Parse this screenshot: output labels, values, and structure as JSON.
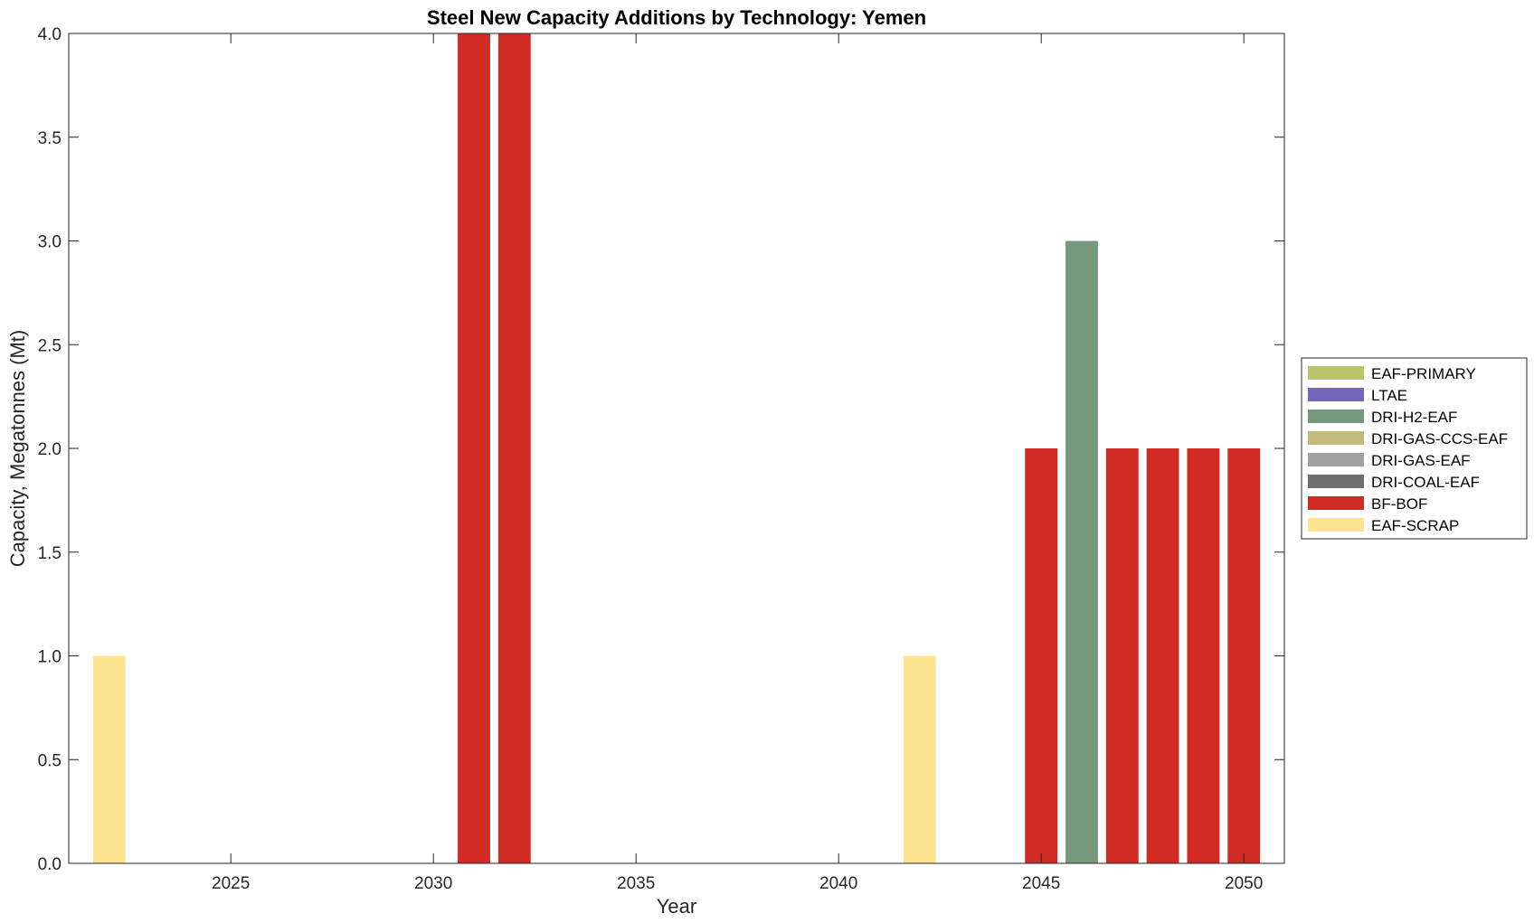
{
  "chart_data": {
    "type": "bar",
    "stacked": true,
    "title": "Steel New Capacity Additions by Technology: Yemen",
    "xlabel": "Year",
    "ylabel": "Capacity, Megatonnes (Mt)",
    "xlim": [
      2021,
      2051
    ],
    "ylim": [
      0,
      4
    ],
    "x_ticks": [
      2025,
      2030,
      2035,
      2040,
      2045,
      2050
    ],
    "y_ticks": [
      0.0,
      0.5,
      1.0,
      1.5,
      2.0,
      2.5,
      3.0,
      3.5,
      4.0
    ],
    "x_tick_labels": [
      "2025",
      "2030",
      "2035",
      "2040",
      "2045",
      "2050"
    ],
    "y_tick_labels": [
      "0.0",
      "0.5",
      "1.0",
      "1.5",
      "2.0",
      "2.5",
      "3.0",
      "3.5",
      "4.0"
    ],
    "grid": false,
    "legend_position": "outside-right",
    "x": [
      2022,
      2023,
      2024,
      2025,
      2026,
      2027,
      2028,
      2029,
      2030,
      2031,
      2032,
      2033,
      2034,
      2035,
      2036,
      2037,
      2038,
      2039,
      2040,
      2041,
      2042,
      2043,
      2044,
      2045,
      2046,
      2047,
      2048,
      2049,
      2050
    ],
    "series": [
      {
        "name": "EAF-PRIMARY",
        "color": "#bcc46a",
        "values": [
          0,
          0,
          0,
          0,
          0,
          0,
          0,
          0,
          0,
          0,
          0,
          0,
          0,
          0,
          0,
          0,
          0,
          0,
          0,
          0,
          0,
          0,
          0,
          0,
          0,
          0,
          0,
          0,
          0
        ]
      },
      {
        "name": "LTAE",
        "color": "#7468b8",
        "values": [
          0,
          0,
          0,
          0,
          0,
          0,
          0,
          0,
          0,
          0,
          0,
          0,
          0,
          0,
          0,
          0,
          0,
          0,
          0,
          0,
          0,
          0,
          0,
          0,
          0,
          0,
          0,
          0,
          0
        ]
      },
      {
        "name": "DRI-H2-EAF",
        "color": "#76997d",
        "values": [
          0,
          0,
          0,
          0,
          0,
          0,
          0,
          0,
          0,
          0,
          0,
          0,
          0,
          0,
          0,
          0,
          0,
          0,
          0,
          0,
          0,
          0,
          0,
          0,
          3,
          0,
          0,
          0,
          0
        ]
      },
      {
        "name": "DRI-GAS-CCS-EAF",
        "color": "#c2b97c",
        "values": [
          0,
          0,
          0,
          0,
          0,
          0,
          0,
          0,
          0,
          0,
          0,
          0,
          0,
          0,
          0,
          0,
          0,
          0,
          0,
          0,
          0,
          0,
          0,
          0,
          0,
          0,
          0,
          0,
          0
        ]
      },
      {
        "name": "DRI-GAS-EAF",
        "color": "#a0a0a0",
        "values": [
          0,
          0,
          0,
          0,
          0,
          0,
          0,
          0,
          0,
          0,
          0,
          0,
          0,
          0,
          0,
          0,
          0,
          0,
          0,
          0,
          0,
          0,
          0,
          0,
          0,
          0,
          0,
          0,
          0
        ]
      },
      {
        "name": "DRI-COAL-EAF",
        "color": "#6e6e6e",
        "values": [
          0,
          0,
          0,
          0,
          0,
          0,
          0,
          0,
          0,
          0,
          0,
          0,
          0,
          0,
          0,
          0,
          0,
          0,
          0,
          0,
          0,
          0,
          0,
          0,
          0,
          0,
          0,
          0,
          0
        ]
      },
      {
        "name": "BF-BOF",
        "color": "#d22a25",
        "values": [
          0,
          0,
          0,
          0,
          0,
          0,
          0,
          0,
          0,
          4,
          4,
          0,
          0,
          0,
          0,
          0,
          0,
          0,
          0,
          0,
          0,
          0,
          0,
          2,
          0,
          2,
          2,
          2,
          2
        ]
      },
      {
        "name": "EAF-SCRAP",
        "color": "#fee391",
        "values": [
          1,
          0,
          0,
          0,
          0,
          0,
          0,
          0,
          0,
          0,
          0,
          0,
          0,
          0,
          0,
          0,
          0,
          0,
          0,
          0,
          1,
          0,
          0,
          0,
          0,
          0,
          0,
          0,
          0
        ]
      }
    ]
  }
}
